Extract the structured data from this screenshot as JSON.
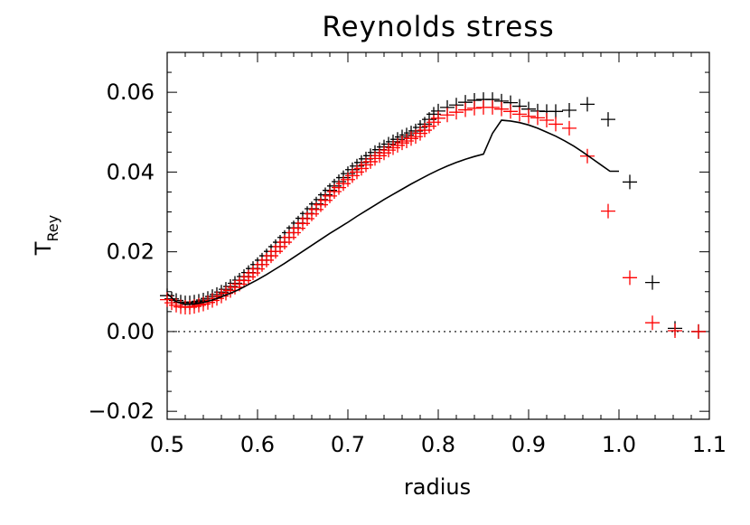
{
  "chart_data": {
    "type": "scatter",
    "title": "Reynolds stress",
    "xlabel": "radius",
    "ylabel": "T",
    "ylabel_sub": "Rey",
    "xlim": [
      0.5,
      1.1
    ],
    "ylim": [
      -0.022,
      0.07
    ],
    "xticks": [
      0.5,
      0.6,
      0.7,
      0.8,
      0.9,
      1.0,
      1.1
    ],
    "xtick_labels": [
      "0.5",
      "0.6",
      "0.7",
      "0.8",
      "0.9",
      "1.0",
      "1.1"
    ],
    "yticks": [
      -0.02,
      0.0,
      0.02,
      0.04,
      0.06
    ],
    "ytick_labels": [
      "−0.02",
      "0.00",
      "0.02",
      "0.04",
      "0.06"
    ],
    "grid": false,
    "zero_line": true,
    "colors": {
      "black": "#000000",
      "red": "#ff0000"
    },
    "series": [
      {
        "style": "plus",
        "color": "#000000",
        "x": [
          0.5,
          0.505,
          0.51,
          0.515,
          0.52,
          0.525,
          0.53,
          0.535,
          0.54,
          0.545,
          0.55,
          0.555,
          0.56,
          0.565,
          0.57,
          0.575,
          0.58,
          0.585,
          0.59,
          0.595,
          0.6,
          0.605,
          0.61,
          0.615,
          0.62,
          0.625,
          0.63,
          0.635,
          0.64,
          0.645,
          0.65,
          0.655,
          0.66,
          0.665,
          0.67,
          0.675,
          0.68,
          0.685,
          0.69,
          0.695,
          0.7,
          0.705,
          0.71,
          0.715,
          0.72,
          0.725,
          0.73,
          0.735,
          0.74,
          0.745,
          0.75,
          0.755,
          0.76,
          0.765,
          0.77,
          0.775,
          0.78,
          0.785,
          0.79,
          0.795,
          0.8,
          0.81,
          0.82,
          0.83,
          0.84,
          0.85,
          0.86,
          0.87,
          0.88,
          0.89,
          0.9,
          0.91,
          0.92,
          0.93,
          0.945,
          0.965,
          0.988,
          1.012,
          1.037,
          1.062,
          1.088
        ],
        "y": [
          0.009,
          0.0082,
          0.0078,
          0.0074,
          0.0072,
          0.0072,
          0.0074,
          0.0076,
          0.0079,
          0.0083,
          0.0088,
          0.0093,
          0.0099,
          0.0106,
          0.0113,
          0.0121,
          0.0129,
          0.0138,
          0.0148,
          0.0158,
          0.0168,
          0.0179,
          0.019,
          0.0201,
          0.0213,
          0.0224,
          0.0236,
          0.0248,
          0.026,
          0.0272,
          0.0284,
          0.0296,
          0.0308,
          0.032,
          0.0331,
          0.0343,
          0.0354,
          0.0365,
          0.0376,
          0.0386,
          0.0396,
          0.0406,
          0.0415,
          0.0424,
          0.0433,
          0.0441,
          0.0449,
          0.0456,
          0.0463,
          0.047,
          0.0476,
          0.0482,
          0.0488,
          0.0493,
          0.0498,
          0.0503,
          0.0512,
          0.052,
          0.0532,
          0.0545,
          0.0553,
          0.0562,
          0.0568,
          0.0575,
          0.058,
          0.0582,
          0.0582,
          0.0578,
          0.0574,
          0.0565,
          0.0558,
          0.0553,
          0.0552,
          0.0552,
          0.0555,
          0.057,
          0.0532,
          0.0375,
          0.0123,
          0.0008,
          0.0
        ]
      },
      {
        "style": "plus",
        "color": "#ff0000",
        "x": [
          0.5,
          0.505,
          0.51,
          0.515,
          0.52,
          0.525,
          0.53,
          0.535,
          0.54,
          0.545,
          0.55,
          0.555,
          0.56,
          0.565,
          0.57,
          0.575,
          0.58,
          0.585,
          0.59,
          0.595,
          0.6,
          0.605,
          0.61,
          0.615,
          0.62,
          0.625,
          0.63,
          0.635,
          0.64,
          0.645,
          0.65,
          0.655,
          0.66,
          0.665,
          0.67,
          0.675,
          0.68,
          0.685,
          0.69,
          0.695,
          0.7,
          0.705,
          0.71,
          0.715,
          0.72,
          0.725,
          0.73,
          0.735,
          0.74,
          0.745,
          0.75,
          0.755,
          0.76,
          0.765,
          0.77,
          0.775,
          0.78,
          0.785,
          0.79,
          0.795,
          0.8,
          0.81,
          0.82,
          0.83,
          0.84,
          0.85,
          0.86,
          0.87,
          0.88,
          0.89,
          0.9,
          0.91,
          0.92,
          0.93,
          0.945,
          0.965,
          0.988,
          1.012,
          1.037,
          1.062,
          1.088
        ],
        "y": [
          0.008,
          0.0072,
          0.0066,
          0.0062,
          0.0061,
          0.0061,
          0.0063,
          0.0066,
          0.0069,
          0.0073,
          0.0078,
          0.0083,
          0.0089,
          0.0096,
          0.0103,
          0.0111,
          0.0119,
          0.0128,
          0.0137,
          0.0147,
          0.0157,
          0.0168,
          0.0179,
          0.019,
          0.0201,
          0.0213,
          0.0224,
          0.0236,
          0.0248,
          0.0259,
          0.0271,
          0.0283,
          0.0295,
          0.0306,
          0.0318,
          0.0329,
          0.034,
          0.0351,
          0.0361,
          0.0371,
          0.0381,
          0.0391,
          0.04,
          0.0409,
          0.0418,
          0.0426,
          0.0434,
          0.0441,
          0.0448,
          0.0455,
          0.0461,
          0.0467,
          0.0473,
          0.0478,
          0.0484,
          0.0489,
          0.0497,
          0.0505,
          0.0515,
          0.0525,
          0.0535,
          0.0543,
          0.055,
          0.0556,
          0.056,
          0.0562,
          0.0562,
          0.0558,
          0.0552,
          0.0545,
          0.054,
          0.0536,
          0.053,
          0.052,
          0.051,
          0.044,
          0.0302,
          0.0135,
          0.0022,
          0.0002,
          0.0
        ]
      },
      {
        "style": "line",
        "color": "#000000",
        "x": [
          0.5,
          0.51,
          0.52,
          0.53,
          0.54,
          0.55,
          0.56,
          0.57,
          0.58,
          0.59,
          0.6,
          0.61,
          0.62,
          0.63,
          0.64,
          0.65,
          0.66,
          0.67,
          0.68,
          0.69,
          0.7,
          0.71,
          0.72,
          0.73,
          0.74,
          0.75,
          0.76,
          0.77,
          0.78,
          0.79,
          0.8,
          0.81,
          0.82,
          0.83,
          0.84,
          0.85,
          0.86,
          0.87,
          0.88,
          0.89,
          0.9,
          0.91,
          0.92,
          0.93,
          0.94,
          0.95,
          0.96,
          0.97,
          0.98,
          0.99,
          1.0
        ],
        "y": [
          0.0095,
          0.0075,
          0.0068,
          0.0069,
          0.0073,
          0.0079,
          0.0087,
          0.0096,
          0.0106,
          0.0118,
          0.013,
          0.0143,
          0.0157,
          0.0171,
          0.0186,
          0.0201,
          0.0216,
          0.0231,
          0.0246,
          0.026,
          0.0274,
          0.0289,
          0.0303,
          0.0317,
          0.0331,
          0.0344,
          0.0357,
          0.037,
          0.0382,
          0.0394,
          0.0405,
          0.0415,
          0.0424,
          0.0432,
          0.0439,
          0.0445,
          0.0497,
          0.053,
          0.0528,
          0.0524,
          0.0518,
          0.051,
          0.05,
          0.049,
          0.0478,
          0.0465,
          0.045,
          0.0434,
          0.0418,
          0.0402,
          0.0402
        ]
      }
    ]
  }
}
